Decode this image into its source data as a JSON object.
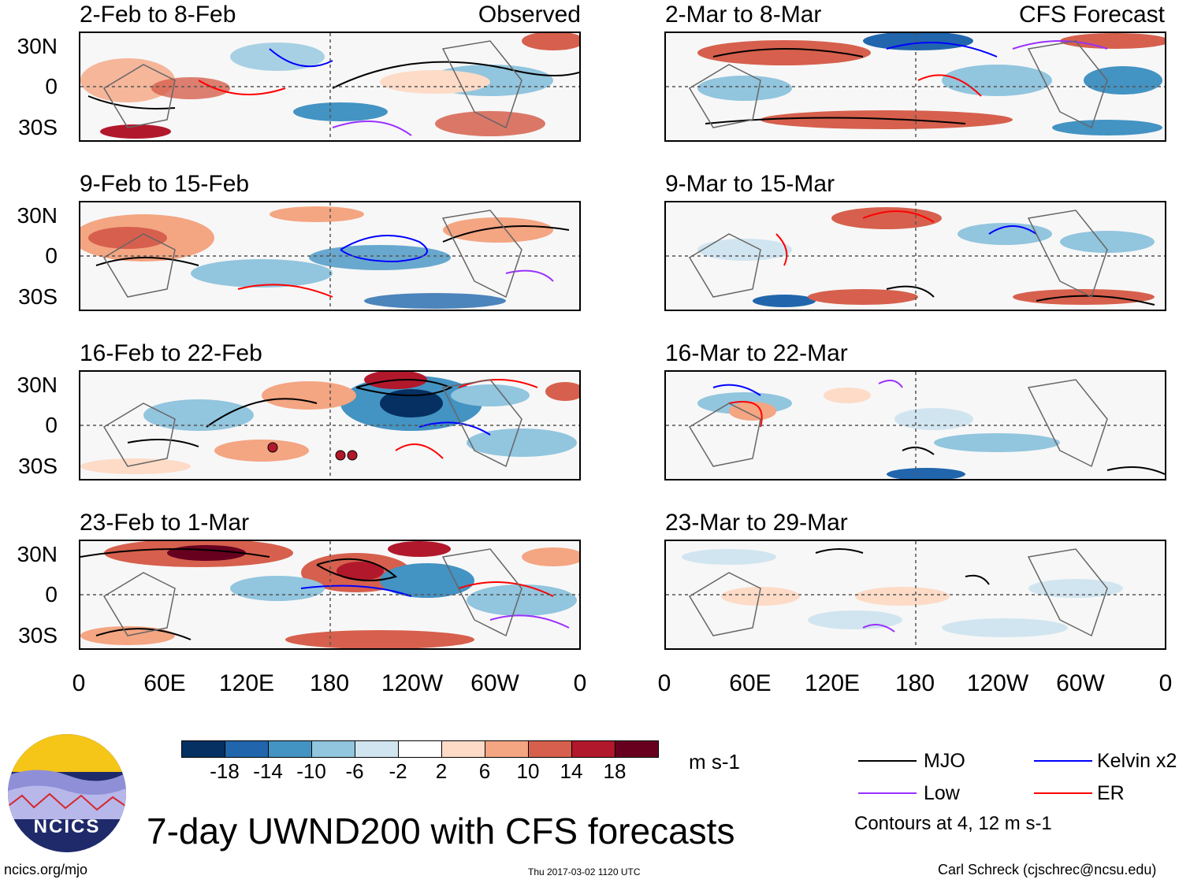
{
  "columns": [
    {
      "tag": "Observed",
      "panels": [
        "2-Feb to 8-Feb",
        "9-Feb to 15-Feb",
        "16-Feb to 22-Feb",
        "23-Feb to 1-Mar"
      ]
    },
    {
      "tag": "CFS Forecast",
      "panels": [
        "2-Mar to 8-Mar",
        "9-Mar to 15-Mar",
        "16-Mar to 22-Mar",
        "23-Mar to 29-Mar"
      ]
    }
  ],
  "lat_labels": [
    "30N",
    "0",
    "30S"
  ],
  "lon_labels": [
    "0",
    "60E",
    "120E",
    "180",
    "120W",
    "60W",
    "0"
  ],
  "colorbar": {
    "colors": [
      "#053061",
      "#2166ac",
      "#4393c3",
      "#92c5de",
      "#d1e5f0",
      "#ffffff",
      "#fddbc7",
      "#f4a582",
      "#d6604d",
      "#b2182b",
      "#67001f"
    ],
    "ticks": [
      "-18",
      "-14",
      "-10",
      "-6",
      "-2",
      "2",
      "6",
      "10",
      "14",
      "18"
    ],
    "units": "m s-1"
  },
  "legend": {
    "items": [
      {
        "label": "MJO",
        "color": "#000000"
      },
      {
        "label": "Kelvin x2",
        "color": "#0000ff"
      },
      {
        "label": "Low",
        "color": "#9b30ff"
      },
      {
        "label": "ER",
        "color": "#ff0000"
      }
    ],
    "note": "Contours at 4, 12 m s-1"
  },
  "logo": {
    "text": "NCICS"
  },
  "title": "7-day UWND200 with CFS forecasts",
  "footer": {
    "url": "ncics.org/mjo",
    "timestamp": "Thu 2017-03-02 1120 UTC",
    "credit": "Carl Schreck (cjschrec@ncsu.edu)"
  }
}
